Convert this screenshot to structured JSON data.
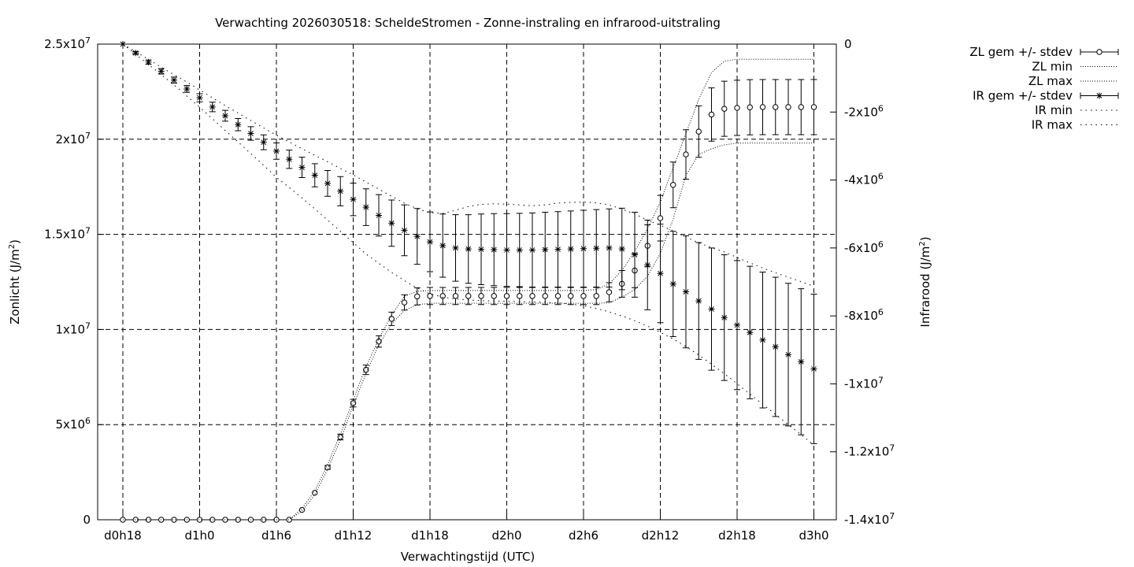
{
  "chart_data": {
    "type": "line",
    "title": "Verwachting 2026030518: ScheldeStromen - Zonne-instraling en infrarood-uitstraling",
    "xlabel": "Verwachtingstijd (UTC)",
    "ylabel_left": {
      "base": "Zonlicht (J/m",
      "sup": "2",
      "tail": ")"
    },
    "ylabel_right": {
      "base": "Infrarood (J/m",
      "sup": "2",
      "tail": ")"
    },
    "x_ticks": [
      "d0h18",
      "d1h0",
      "d1h6",
      "d1h12",
      "d1h18",
      "d2h0",
      "d2h6",
      "d2h12",
      "d2h18",
      "d3h0"
    ],
    "xlim": [
      18,
      73
    ],
    "y_left_ticks": [
      {
        "value": 0,
        "base": "0",
        "exp": ""
      },
      {
        "value": 5000000,
        "base": "5x10",
        "exp": "6"
      },
      {
        "value": 10000000,
        "base": "1x10",
        "exp": "7"
      },
      {
        "value": 15000000,
        "base": "1.5x10",
        "exp": "7"
      },
      {
        "value": 20000000,
        "base": "2x10",
        "exp": "7"
      },
      {
        "value": 25000000,
        "base": "2.5x10",
        "exp": "7"
      }
    ],
    "y_left_lim": [
      0,
      25000000
    ],
    "y_right_ticks": [
      {
        "value": 0,
        "base": "0",
        "exp": ""
      },
      {
        "value": -2000000,
        "base": "-2x10",
        "exp": "6"
      },
      {
        "value": -4000000,
        "base": "-4x10",
        "exp": "6"
      },
      {
        "value": -6000000,
        "base": "-6x10",
        "exp": "6"
      },
      {
        "value": -8000000,
        "base": "-8x10",
        "exp": "6"
      },
      {
        "value": -10000000,
        "base": "-1x10",
        "exp": "7"
      },
      {
        "value": -12000000,
        "base": "-1.2x10",
        "exp": "7"
      },
      {
        "value": -14000000,
        "base": "-1.4x10",
        "exp": "7"
      }
    ],
    "y_right_lim": [
      -14000000,
      0
    ],
    "grid": true,
    "legend_position": "right, outside plot",
    "x": [
      18,
      19,
      20,
      21,
      22,
      23,
      24,
      25,
      26,
      27,
      28,
      29,
      30,
      31,
      32,
      33,
      34,
      35,
      36,
      37,
      38,
      39,
      40,
      41,
      42,
      43,
      44,
      45,
      46,
      47,
      48,
      49,
      50,
      51,
      52,
      53,
      54,
      55,
      56,
      57,
      58,
      59,
      60,
      61,
      62,
      63,
      64,
      65,
      66,
      67,
      68,
      69,
      70,
      71,
      72
    ],
    "series": [
      {
        "name": "ZL gem +/- stdev",
        "axis": "left",
        "marker": "circle",
        "mean": [
          0,
          0,
          0,
          0,
          0,
          0,
          0,
          0,
          0,
          0,
          0,
          0,
          0,
          0,
          520000,
          1420000,
          2750000,
          4350000,
          6130000,
          7880000,
          9370000,
          10560000,
          11420000,
          11740000,
          11760000,
          11760000,
          11760000,
          11760000,
          11760000,
          11760000,
          11760000,
          11760000,
          11760000,
          11760000,
          11760000,
          11760000,
          11760000,
          11760000,
          11960000,
          12400000,
          13100000,
          14400000,
          15850000,
          17600000,
          19200000,
          20400000,
          21300000,
          21600000,
          21650000,
          21680000,
          21690000,
          21690000,
          21690000,
          21690000,
          21690000
        ],
        "stdev": [
          0,
          0,
          0,
          0,
          0,
          0,
          0,
          0,
          0,
          0,
          0,
          0,
          0,
          0,
          0,
          0,
          100000,
          150000,
          200000,
          250000,
          300000,
          350000,
          400000,
          450000,
          450000,
          450000,
          450000,
          450000,
          450000,
          450000,
          450000,
          450000,
          450000,
          450000,
          450000,
          450000,
          450000,
          450000,
          500000,
          700000,
          900000,
          1100000,
          1200000,
          1200000,
          1300000,
          1350000,
          1400000,
          1450000,
          1450000,
          1450000,
          1450000,
          1450000,
          1450000,
          1450000,
          1450000
        ]
      },
      {
        "name": "ZL min",
        "axis": "left",
        "style": "dotted",
        "values": [
          0,
          0,
          0,
          0,
          0,
          0,
          0,
          0,
          0,
          0,
          0,
          0,
          0,
          0,
          450000,
          1330000,
          2650000,
          4200000,
          6000000,
          7700000,
          9200000,
          10300000,
          11000000,
          11300000,
          11380000,
          11380000,
          11380000,
          11380000,
          11380000,
          11380000,
          11380000,
          11380000,
          11380000,
          11380000,
          11380000,
          11380000,
          11380000,
          11380000,
          11400000,
          11700000,
          12100000,
          12800000,
          14000000,
          15800000,
          18100000,
          19200000,
          19500000,
          19700000,
          19800000,
          19800000,
          19800000,
          19800000,
          19800000,
          19800000,
          19800000
        ]
      },
      {
        "name": "ZL max",
        "axis": "left",
        "style": "dotted",
        "values": [
          0,
          0,
          0,
          0,
          0,
          0,
          0,
          0,
          0,
          0,
          0,
          0,
          0,
          0,
          600000,
          1520000,
          2900000,
          4500000,
          6300000,
          8050000,
          9500000,
          10750000,
          11750000,
          12000000,
          12050000,
          12050000,
          12050000,
          12050000,
          12050000,
          12050000,
          12050000,
          12050000,
          12050000,
          12050000,
          12050000,
          12050000,
          12050000,
          12100000,
          12400000,
          13100000,
          14100000,
          15300000,
          16700000,
          18500000,
          20300000,
          22100000,
          23500000,
          24100000,
          24200000,
          24200000,
          24200000,
          24200000,
          24200000,
          24200000,
          24200000
        ]
      },
      {
        "name": "IR gem +/- stdev",
        "axis": "right",
        "marker": "star",
        "mean": [
          0,
          -260000,
          -530000,
          -800000,
          -1060000,
          -1320000,
          -1580000,
          -1850000,
          -2110000,
          -2370000,
          -2630000,
          -2890000,
          -3150000,
          -3390000,
          -3630000,
          -3860000,
          -4100000,
          -4330000,
          -4570000,
          -4800000,
          -5040000,
          -5270000,
          -5480000,
          -5660000,
          -5820000,
          -5930000,
          -6000000,
          -6030000,
          -6040000,
          -6050000,
          -6060000,
          -6060000,
          -6060000,
          -6050000,
          -6040000,
          -6030000,
          -6020000,
          -6010000,
          -6000000,
          -6030000,
          -6200000,
          -6500000,
          -6750000,
          -7060000,
          -7290000,
          -7560000,
          -7800000,
          -8050000,
          -8270000,
          -8490000,
          -8710000,
          -8910000,
          -9140000,
          -9350000,
          -9560000
        ],
        "stdev": [
          0,
          40000,
          60000,
          80000,
          90000,
          100000,
          120000,
          140000,
          160000,
          180000,
          200000,
          220000,
          240000,
          270000,
          300000,
          340000,
          380000,
          430000,
          480000,
          540000,
          610000,
          680000,
          750000,
          820000,
          880000,
          930000,
          980000,
          1010000,
          1040000,
          1060000,
          1070000,
          1080000,
          1090000,
          1100000,
          1110000,
          1120000,
          1130000,
          1140000,
          1150000,
          1200000,
          1250000,
          1320000,
          1450000,
          1550000,
          1650000,
          1720000,
          1800000,
          1850000,
          1900000,
          1950000,
          2000000,
          2050000,
          2100000,
          2150000,
          2200000
        ]
      },
      {
        "name": "IR min",
        "axis": "right",
        "style": "dotted",
        "values": [
          0,
          -300000,
          -600000,
          -900000,
          -1200000,
          -1530000,
          -1860000,
          -2200000,
          -2540000,
          -2880000,
          -3220000,
          -3570000,
          -3920000,
          -4220000,
          -4530000,
          -4850000,
          -5180000,
          -5510000,
          -5840000,
          -6180000,
          -6450000,
          -6720000,
          -6960000,
          -7180000,
          -7350000,
          -7450000,
          -7500000,
          -7530000,
          -7550000,
          -7560000,
          -7570000,
          -7580000,
          -7590000,
          -7600000,
          -7620000,
          -7650000,
          -7700000,
          -7780000,
          -7880000,
          -8000000,
          -8140000,
          -8300000,
          -8480000,
          -8680000,
          -8900000,
          -9150000,
          -9420000,
          -9700000,
          -10000000,
          -10300000,
          -10600000,
          -10900000,
          -11200000,
          -11500000,
          -11800000
        ]
      },
      {
        "name": "IR max",
        "axis": "right",
        "style": "dotted",
        "values": [
          0,
          -220000,
          -450000,
          -680000,
          -900000,
          -1120000,
          -1350000,
          -1580000,
          -1810000,
          -2030000,
          -2250000,
          -2470000,
          -2680000,
          -2880000,
          -3080000,
          -3270000,
          -3460000,
          -3660000,
          -3850000,
          -4060000,
          -4270000,
          -4480000,
          -4680000,
          -4850000,
          -4960000,
          -4980000,
          -4890000,
          -4780000,
          -4720000,
          -4700000,
          -4710000,
          -4730000,
          -4760000,
          -4730000,
          -4680000,
          -4660000,
          -4650000,
          -4670000,
          -4730000,
          -4860000,
          -5000000,
          -5180000,
          -5330000,
          -5500000,
          -5680000,
          -5850000,
          -5990000,
          -6120000,
          -6280000,
          -6440000,
          -6590000,
          -6730000,
          -6860000,
          -6990000,
          -7130000
        ]
      }
    ]
  }
}
